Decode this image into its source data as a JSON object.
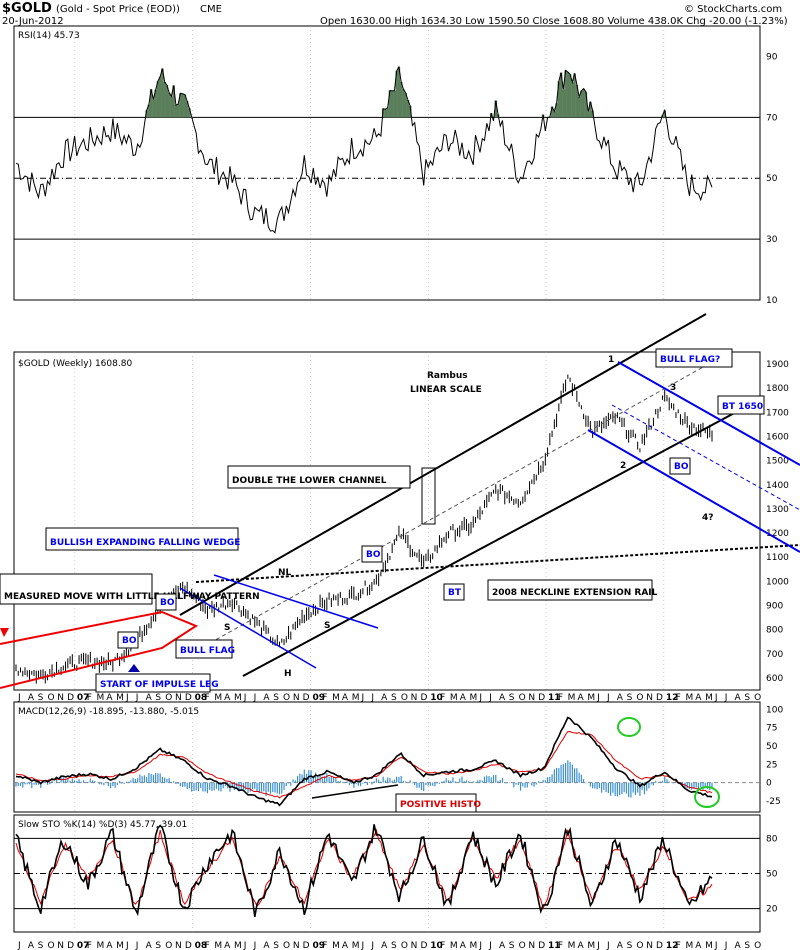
{
  "header": {
    "symbol": "$GOLD",
    "name": "(Gold - Spot Price (EOD))",
    "exchange": "CME",
    "date": "20-Jun-2012",
    "ohlc": "Open 1630.00  High 1634.30  Low 1590.50  Close 1608.80  Volume 438.0K  Chg -20.00 (-1.23%)",
    "copyright": "© StockCharts.com"
  },
  "panels": {
    "rsi_label": "RSI(14) 45.73",
    "price_label": "$GOLD (Weekly) 1608.80",
    "macd_label": "MACD(12,26,9) -18.895, -13.880, -5.015",
    "sto_label": "Slow STO %K(14) %D(3) 45.77, 39.01"
  },
  "colors": {
    "price": "#000000",
    "signal": "#dd0000",
    "histogram": "#3a8fd0",
    "rsi_fill": "#5a7f5a",
    "channel": "#000000",
    "flag": "#0000ee",
    "wedge": "#ee0000",
    "circle": "#22cc22"
  },
  "annotations": {
    "author": "Rambus",
    "scale": "LINEAR SCALE",
    "double_channel": "DOUBLE THE LOWER CHANNEL",
    "wedge": "BULLISH EXPANDING FALLING WEDGE",
    "measured_move": "MEASURED MOVE WITH LITTLE HALFWAY PATTERN",
    "bull_flag": "BULL FLAG",
    "bull_flag_q": "BULL FLAG?",
    "bt1650": "BT 1650",
    "neckline_rail": "2008 NECKLINE EXTENSION RAIL",
    "impulse": "START OF IMPULSE LEG",
    "positive_histo": "POSITIVE HISTO",
    "bo": "BO",
    "bt": "BT",
    "nl": "NL",
    "s": "S",
    "h": "H",
    "p1": "1",
    "p2": "2",
    "p3": "3",
    "p4": "4?"
  },
  "chart_data": [
    {
      "type": "line",
      "title": "RSI(14) 45.73",
      "ylim": [
        10,
        100
      ],
      "y_ticks": [
        10,
        30,
        50,
        70,
        90
      ],
      "x": [
        "2006-07",
        "2006-10",
        "2007-01",
        "2007-04",
        "2007-07",
        "2007-10",
        "2008-01",
        "2008-03",
        "2008-05",
        "2008-07",
        "2008-09",
        "2008-10",
        "2008-12",
        "2009-03",
        "2009-06",
        "2009-09",
        "2009-12",
        "2010-02",
        "2010-05",
        "2010-08",
        "2010-11",
        "2011-02",
        "2011-05",
        "2011-08",
        "2011-09",
        "2011-10",
        "2011-12",
        "2012-02",
        "2012-04",
        "2012-06"
      ],
      "values": [
        55,
        45,
        58,
        62,
        66,
        60,
        84,
        74,
        55,
        49,
        38,
        36,
        55,
        48,
        60,
        63,
        84,
        51,
        63,
        58,
        72,
        50,
        68,
        87,
        70,
        53,
        47,
        72,
        48,
        46
      ]
    },
    {
      "type": "line",
      "title": "$GOLD (Weekly) 1608.80",
      "ylim": [
        550,
        1950
      ],
      "y_ticks": [
        600,
        700,
        800,
        900,
        1000,
        1100,
        1200,
        1300,
        1400,
        1500,
        1600,
        1700,
        1800,
        1900
      ],
      "x": [
        "2006-07",
        "2006-10",
        "2007-01",
        "2007-04",
        "2007-07",
        "2007-10",
        "2008-01",
        "2008-03",
        "2008-05",
        "2008-07",
        "2008-09",
        "2008-10",
        "2008-12",
        "2009-03",
        "2009-06",
        "2009-09",
        "2009-12",
        "2010-02",
        "2010-05",
        "2010-08",
        "2010-11",
        "2011-02",
        "2011-05",
        "2011-08",
        "2011-09",
        "2011-10",
        "2011-12",
        "2012-02",
        "2012-04",
        "2012-06"
      ],
      "values": [
        640,
        610,
        650,
        670,
        660,
        750,
        900,
        980,
        880,
        920,
        830,
        730,
        860,
        920,
        940,
        1000,
        1200,
        1070,
        1200,
        1230,
        1380,
        1330,
        1500,
        1850,
        1620,
        1680,
        1560,
        1760,
        1650,
        1608
      ]
    },
    {
      "type": "line",
      "title": "MACD(12,26,9) -18.895, -13.880, -5.015",
      "ylim": [
        -40,
        110
      ],
      "y_ticks": [
        -25,
        0,
        25,
        50,
        75,
        100
      ],
      "series": [
        {
          "name": "MACD",
          "values": [
            10,
            0,
            8,
            12,
            5,
            20,
            45,
            30,
            5,
            -5,
            -20,
            -30,
            5,
            15,
            0,
            10,
            40,
            10,
            15,
            18,
            30,
            10,
            20,
            90,
            60,
            20,
            -5,
            15,
            -10,
            -19
          ]
        },
        {
          "name": "Signal",
          "values": [
            12,
            3,
            5,
            10,
            8,
            15,
            38,
            35,
            12,
            0,
            -12,
            -20,
            -5,
            10,
            3,
            8,
            35,
            15,
            12,
            16,
            25,
            15,
            18,
            70,
            65,
            30,
            5,
            10,
            -5,
            -14
          ]
        }
      ]
    },
    {
      "type": "line",
      "title": "Slow STO %K(14) %D(3) 45.77, 39.01",
      "ylim": [
        0,
        100
      ],
      "y_ticks": [
        20,
        50,
        80
      ],
      "series": [
        {
          "name": "%K",
          "values": [
            80,
            20,
            80,
            40,
            85,
            15,
            90,
            20,
            60,
            85,
            15,
            70,
            20,
            85,
            40,
            90,
            30,
            80,
            20,
            85,
            40,
            85,
            15,
            90,
            20,
            80,
            30,
            80,
            20,
            46
          ]
        },
        {
          "name": "%D",
          "values": [
            75,
            25,
            75,
            45,
            80,
            20,
            85,
            25,
            55,
            80,
            20,
            65,
            25,
            80,
            45,
            85,
            35,
            75,
            25,
            80,
            45,
            80,
            20,
            85,
            25,
            75,
            35,
            75,
            25,
            39
          ]
        }
      ]
    }
  ],
  "x_axis": {
    "labels": [
      "J",
      "A",
      "S",
      "O",
      "N",
      "D",
      "07",
      "F",
      "M",
      "A",
      "M",
      "J",
      "J",
      "A",
      "S",
      "O",
      "N",
      "D",
      "08",
      "F",
      "M",
      "A",
      "M",
      "J",
      "J",
      "A",
      "S",
      "O",
      "N",
      "D",
      "09",
      "F",
      "M",
      "A",
      "M",
      "J",
      "J",
      "A",
      "S",
      "O",
      "N",
      "D",
      "10",
      "F",
      "M",
      "A",
      "M",
      "J",
      "J",
      "A",
      "S",
      "O",
      "N",
      "D",
      "11",
      "F",
      "M",
      "A",
      "M",
      "J",
      "J",
      "A",
      "S",
      "O",
      "N",
      "D",
      "12",
      "F",
      "M",
      "A",
      "M",
      "J",
      "J",
      "A",
      "S",
      "O"
    ]
  }
}
